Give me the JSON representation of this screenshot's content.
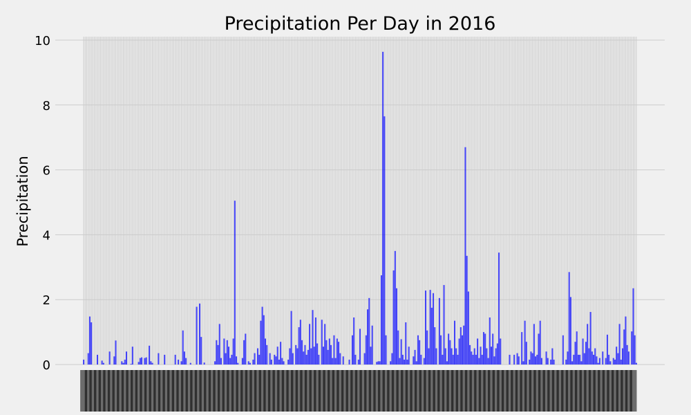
{
  "chart_data": {
    "type": "bar",
    "title": "Precipitation Per Day in 2016",
    "xlabel": "",
    "ylabel": "Precipitation",
    "ylim": [
      0,
      10
    ],
    "yticks": [
      0,
      2,
      4,
      6,
      8,
      10
    ],
    "grid": true,
    "x_tick_labels_rotated": 90,
    "x_tick_labels_legible": false,
    "bar_color": "#0000ff",
    "background": "#f0f0f0",
    "grid_color": "#cbcbcb",
    "values": [
      0.15,
      0.0,
      0.0,
      0.35,
      1.48,
      1.3,
      0.0,
      0.0,
      0.0,
      0.3,
      0.0,
      0.0,
      0.12,
      0.05,
      0.0,
      0.0,
      0.0,
      0.4,
      0.0,
      0.0,
      0.25,
      0.74,
      0.0,
      0.0,
      0.0,
      0.1,
      0.05,
      0.15,
      0.4,
      0.0,
      0.0,
      0.02,
      0.55,
      0.0,
      0.0,
      0.0,
      0.08,
      0.2,
      0.22,
      0.0,
      0.2,
      0.22,
      0.0,
      0.58,
      0.1,
      0.05,
      0.0,
      0.0,
      0.0,
      0.35,
      0.0,
      0.0,
      0.0,
      0.3,
      0.0,
      0.0,
      0.0,
      0.0,
      0.0,
      0.0,
      0.3,
      0.0,
      0.15,
      0.0,
      0.1,
      1.05,
      0.4,
      0.2,
      0.0,
      0.0,
      0.05,
      0.0,
      0.0,
      0.0,
      1.78,
      0.0,
      1.88,
      0.85,
      0.0,
      0.06,
      0.0,
      0.0,
      0.0,
      0.0,
      0.0,
      0.0,
      0.1,
      0.75,
      0.6,
      1.25,
      0.2,
      0.0,
      0.8,
      0.35,
      0.75,
      0.55,
      0.2,
      0.3,
      0.8,
      5.05,
      0.25,
      0.05,
      0.0,
      0.0,
      0.2,
      0.75,
      0.95,
      0.0,
      0.1,
      0.05,
      0.0,
      0.15,
      0.35,
      0.0,
      0.5,
      0.3,
      1.35,
      1.78,
      1.52,
      0.8,
      0.6,
      0.0,
      0.35,
      0.15,
      0.0,
      0.3,
      0.25,
      0.55,
      0.15,
      0.7,
      0.2,
      0.1,
      0.0,
      0.0,
      0.15,
      0.5,
      1.65,
      0.35,
      0.0,
      0.6,
      0.5,
      1.15,
      1.38,
      0.75,
      0.4,
      0.6,
      0.3,
      0.45,
      1.25,
      0.5,
      1.68,
      0.55,
      1.45,
      0.65,
      0.3,
      0.0,
      1.38,
      0.55,
      1.25,
      0.75,
      0.45,
      0.8,
      0.6,
      0.2,
      0.9,
      0.2,
      0.8,
      0.7,
      0.35,
      0.0,
      0.25,
      0.0,
      0.0,
      0.0,
      0.15,
      0.0,
      0.9,
      1.45,
      0.3,
      0.0,
      0.15,
      1.1,
      0.0,
      0.0,
      0.35,
      0.9,
      1.7,
      2.05,
      0.55,
      1.2,
      0.0,
      0.0,
      0.08,
      0.1,
      0.1,
      2.75,
      9.64,
      7.65,
      0.9,
      0.0,
      0.0,
      0.1,
      0.35,
      2.9,
      3.5,
      2.35,
      1.05,
      0.2,
      0.78,
      0.3,
      0.15,
      1.3,
      0.15,
      0.55,
      0.0,
      0.0,
      0.25,
      0.45,
      0.1,
      0.9,
      0.75,
      0.3,
      0.0,
      0.2,
      2.28,
      1.05,
      0.5,
      2.3,
      1.75,
      2.2,
      1.15,
      0.5,
      0.0,
      2.05,
      0.9,
      0.3,
      2.45,
      0.5,
      0.1,
      0.95,
      0.75,
      0.5,
      0.3,
      1.35,
      0.5,
      0.3,
      0.8,
      1.15,
      0.9,
      1.2,
      6.7,
      3.35,
      2.25,
      0.6,
      0.4,
      0.3,
      0.5,
      0.3,
      0.8,
      0.2,
      0.55,
      0.3,
      1.0,
      0.95,
      0.5,
      0.2,
      1.45,
      0.55,
      0.95,
      0.25,
      0.5,
      0.65,
      3.45,
      0.8,
      0.0,
      0.0,
      0.0,
      0.0,
      0.0,
      0.3,
      0.0,
      0.0,
      0.3,
      0.0,
      0.35,
      0.25,
      0.0,
      1.0,
      0.1,
      1.35,
      0.7,
      0.0,
      0.15,
      0.4,
      0.35,
      1.25,
      0.25,
      0.3,
      0.95,
      1.35,
      0.2,
      0.0,
      0.0,
      0.4,
      0.2,
      0.0,
      0.15,
      0.5,
      0.15,
      0.0,
      0.0,
      0.0,
      0.0,
      0.0,
      0.9,
      0.0,
      0.15,
      0.4,
      2.85,
      2.08,
      0.1,
      0.3,
      0.7,
      1.02,
      0.3,
      0.3,
      0.1,
      0.8,
      0.35,
      0.7,
      1.25,
      0.5,
      1.62,
      0.4,
      0.3,
      0.5,
      0.25,
      0.05,
      0.2,
      0.0,
      0.4,
      0.0,
      0.2,
      0.92,
      0.3,
      0.1,
      0.0,
      0.2,
      0.15,
      0.55,
      0.35,
      1.25,
      0.15,
      0.5,
      1.08,
      1.48,
      0.6,
      0.4,
      0.0,
      1.02,
      2.35,
      0.9,
      0.05
    ]
  }
}
